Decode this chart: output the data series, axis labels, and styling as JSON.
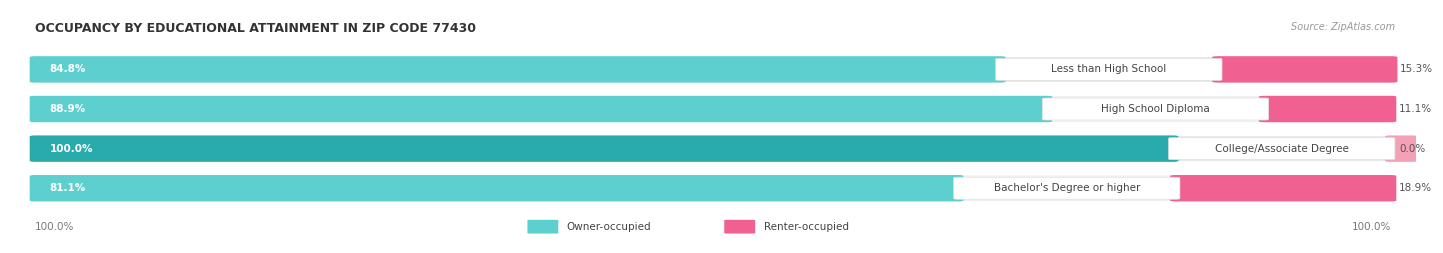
{
  "title": "OCCUPANCY BY EDUCATIONAL ATTAINMENT IN ZIP CODE 77430",
  "source": "Source: ZipAtlas.com",
  "categories": [
    "Less than High School",
    "High School Diploma",
    "College/Associate Degree",
    "Bachelor's Degree or higher"
  ],
  "owner_values": [
    84.8,
    88.9,
    100.0,
    81.1
  ],
  "renter_values": [
    15.3,
    11.1,
    0.0,
    18.9
  ],
  "owner_color_light": "#5ECFCF",
  "owner_color_dark": "#2AABAB",
  "renter_color_light": "#F4A0B5",
  "renter_color_dark": "#F06090",
  "row_bg_light": "#F5F5F5",
  "row_bg_dark": "#E8E8E8",
  "label_bg": "#FFFFFF",
  "label_color": "#555555",
  "owner_text_color": "#FFFFFF",
  "renter_text_color": "#555555",
  "axis_label_left": "100.0%",
  "axis_label_right": "100.0%",
  "legend_owner": "Owner-occupied",
  "legend_renter": "Renter-occupied",
  "title_fontsize": 9,
  "source_fontsize": 7,
  "bar_label_fontsize": 7.5,
  "category_fontsize": 7.5,
  "legend_fontsize": 7.5,
  "axis_fontsize": 7.5,
  "fig_bg": "#FFFFFF"
}
